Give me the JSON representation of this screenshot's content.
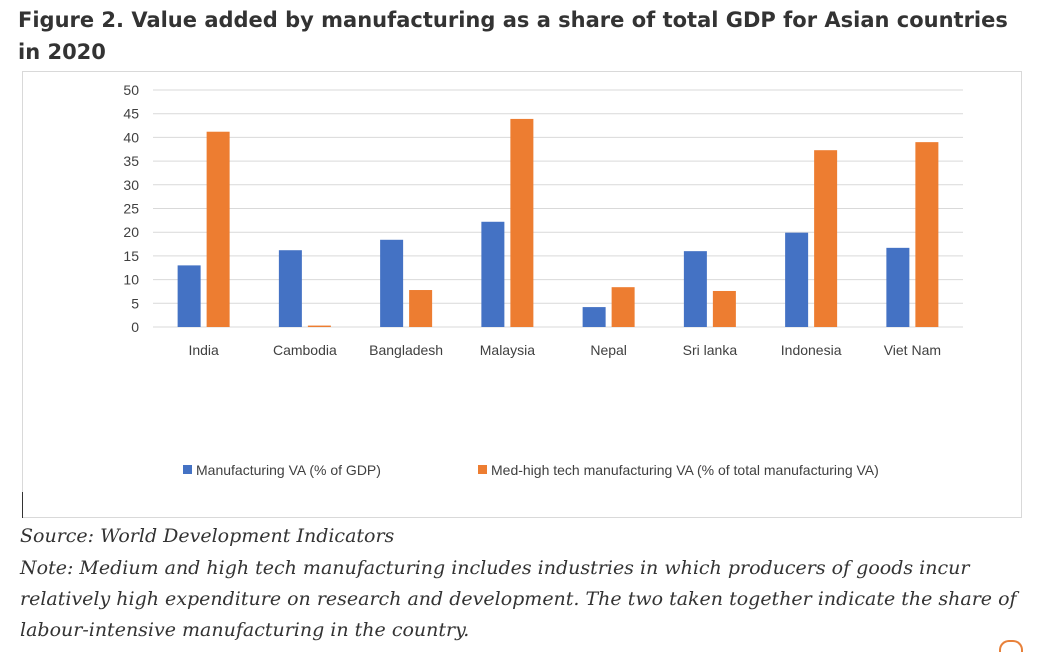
{
  "title": "Figure 2. Value added by manufacturing as a share of total GDP for Asian countries in 2020",
  "source": "Source: World Development Indicators",
  "note": "Note: Medium and high tech manufacturing includes industries in which producers of goods incur relatively high expenditure on research and development. The two taken together indicate the share of labour-intensive manufacturing in the country.",
  "colors": {
    "series1": "#4472c4",
    "series2": "#ed7d31",
    "grid": "#d9d9d9",
    "accent": "#e8813a"
  },
  "chart_data": {
    "type": "bar",
    "title": "",
    "xlabel": "",
    "ylabel": "",
    "categories": [
      "India",
      "Cambodia",
      "Bangladesh",
      "Malaysia",
      "Nepal",
      "Sri lanka",
      "Indonesia",
      "Viet Nam"
    ],
    "series": [
      {
        "name": "Manufacturing VA (% of GDP)",
        "values": [
          13.0,
          16.2,
          18.4,
          22.2,
          4.2,
          16.0,
          19.9,
          16.7
        ]
      },
      {
        "name": "Med-high tech manufacturing VA (% of total manufacturing VA)",
        "values": [
          41.2,
          0.3,
          7.8,
          43.9,
          8.4,
          7.6,
          37.3,
          39.0
        ]
      }
    ],
    "ylim": [
      0,
      50
    ],
    "yticks": [
      0,
      5,
      10,
      15,
      20,
      25,
      30,
      35,
      40,
      45,
      50
    ],
    "grid": true,
    "legend_position": "bottom"
  }
}
